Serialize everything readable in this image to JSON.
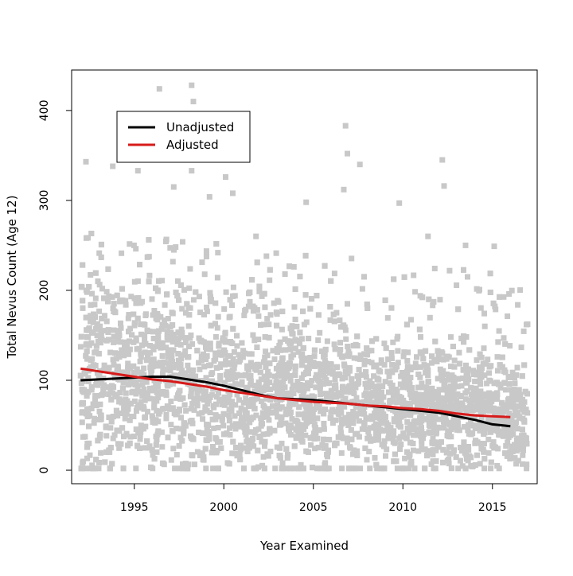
{
  "chart_data": {
    "type": "scatter",
    "xlabel": "Year Examined",
    "ylabel": "Total Nevus Count (Age 12)",
    "xlim": [
      1991.5,
      2017.5
    ],
    "ylim": [
      -15,
      445
    ],
    "xticks": [
      1995,
      2000,
      2005,
      2010,
      2015
    ],
    "yticks": [
      0,
      100,
      200,
      300,
      400
    ],
    "grid": false,
    "legend_position": "top-left",
    "scatter": {
      "color": "#c8c8c8",
      "marker": "square",
      "x_range": [
        1992,
        2017
      ],
      "y_range": [
        0,
        430
      ],
      "approx_count": 4000,
      "outliers": [
        {
          "x": 1996.4,
          "y": 424
        },
        {
          "x": 1998.2,
          "y": 428
        },
        {
          "x": 1998.3,
          "y": 410
        },
        {
          "x": 2006.8,
          "y": 383
        },
        {
          "x": 2006.9,
          "y": 352
        },
        {
          "x": 2007.6,
          "y": 340
        },
        {
          "x": 2012.2,
          "y": 345
        },
        {
          "x": 2012.3,
          "y": 316
        },
        {
          "x": 1992.3,
          "y": 343
        },
        {
          "x": 1993.8,
          "y": 338
        },
        {
          "x": 1995.2,
          "y": 333
        },
        {
          "x": 1998.2,
          "y": 333
        },
        {
          "x": 2000.1,
          "y": 326
        },
        {
          "x": 2001.8,
          "y": 260
        },
        {
          "x": 1997.2,
          "y": 315
        },
        {
          "x": 2004.6,
          "y": 298
        },
        {
          "x": 2009.8,
          "y": 297
        },
        {
          "x": 2015.1,
          "y": 249
        },
        {
          "x": 2013.5,
          "y": 250
        },
        {
          "x": 2011.4,
          "y": 260
        },
        {
          "x": 2016.9,
          "y": 162
        },
        {
          "x": 2006.7,
          "y": 312
        },
        {
          "x": 1999.2,
          "y": 304
        },
        {
          "x": 2000.5,
          "y": 308
        }
      ]
    },
    "series": [
      {
        "name": "Unadjusted",
        "color": "#000000",
        "x": [
          1992,
          1993,
          1994,
          1995,
          1996,
          1997,
          1998,
          1999,
          2000,
          2001,
          2002,
          2003,
          2004,
          2005,
          2006,
          2007,
          2008,
          2009,
          2010,
          2011,
          2012,
          2013,
          2014,
          2015,
          2016
        ],
        "y": [
          100,
          101,
          102,
          103,
          104,
          104,
          101,
          98,
          94,
          89,
          84,
          80,
          79,
          78,
          76,
          74,
          72,
          70,
          68,
          66,
          64,
          60,
          56,
          51,
          49
        ]
      },
      {
        "name": "Adjusted",
        "color": "#d71a1a",
        "x": [
          1992,
          1993,
          1994,
          1995,
          1996,
          1997,
          1998,
          1999,
          2000,
          2001,
          2002,
          2003,
          2004,
          2005,
          2006,
          2007,
          2008,
          2009,
          2010,
          2011,
          2012,
          2013,
          2014,
          2015,
          2016
        ],
        "y": [
          113,
          110,
          107,
          104,
          101,
          99,
          96,
          93,
          89,
          86,
          83,
          80,
          78,
          76,
          75,
          74,
          72,
          71,
          69,
          68,
          66,
          63,
          61,
          60,
          59
        ]
      }
    ]
  }
}
